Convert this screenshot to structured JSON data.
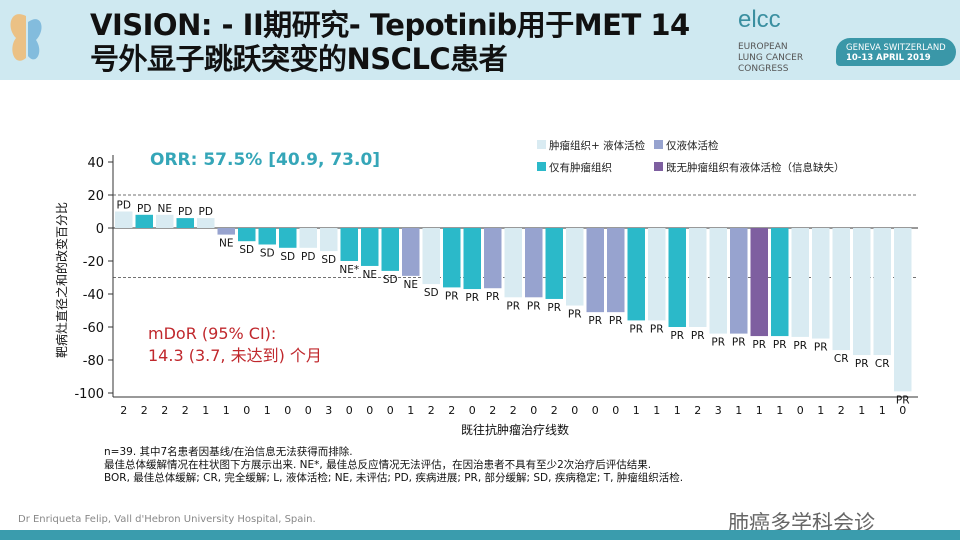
{
  "header": {
    "title_line1": "VISION: - II期研究- Tepotinib用于MET 14",
    "title_line2": "号外显子跳跃突变的NSCLC患者",
    "logo_text": "elcc",
    "logo_sub": [
      "EUROPEAN",
      "LUNG CANCER",
      "CONGRESS"
    ],
    "location": "GENEVA SWITZERLAND",
    "dates": "10-13 APRIL 2019"
  },
  "chart_data": {
    "type": "bar",
    "ylabel": "靶病灶直径之和的改变百分比",
    "xlabel": "既往抗肿瘤治疗线数",
    "ylim": [
      -100,
      40
    ],
    "yticks": [
      40,
      20,
      0,
      -20,
      -40,
      -60,
      -80,
      -100
    ],
    "reference_lines": [
      20,
      -30
    ],
    "legend_placement": "top-right",
    "legend": [
      {
        "key": "both",
        "label": "肿瘤组织+ 液体活检",
        "color": "#d9ebf2"
      },
      {
        "key": "liquid",
        "label": "仅液体活检",
        "color": "#97a3cf"
      },
      {
        "key": "tissue",
        "label": "仅有肿瘤组织",
        "color": "#2bb9c9"
      },
      {
        "key": "none",
        "label": "既无肿瘤组织有液体活检（信息缺失）",
        "color": "#7e5fa0"
      }
    ],
    "values": [
      10,
      8,
      8,
      6,
      6,
      -4,
      -8,
      -10,
      -12,
      -12,
      -14,
      -20,
      -23,
      -26,
      -29,
      -34,
      -36,
      -37,
      -36.5,
      -42,
      -42,
      -43,
      -47,
      -51,
      -51,
      -56,
      -56,
      -60,
      -60,
      -64,
      -64,
      -65.5,
      -65.5,
      -66,
      -67,
      -74,
      -77,
      -77,
      -99
    ],
    "groups": [
      "both",
      "tissue",
      "both",
      "tissue",
      "both",
      "liquid",
      "tissue",
      "tissue",
      "tissue",
      "both",
      "both",
      "tissue",
      "tissue",
      "tissue",
      "liquid",
      "both",
      "tissue",
      "tissue",
      "liquid",
      "both",
      "liquid",
      "tissue",
      "both",
      "liquid",
      "liquid",
      "tissue",
      "both",
      "tissue",
      "both",
      "both",
      "liquid",
      "none",
      "tissue",
      "both",
      "both",
      "both",
      "both",
      "both",
      "both"
    ],
    "responses": [
      "PD",
      "PD",
      "NE",
      "PD",
      "PD",
      "NE",
      "SD",
      "SD",
      "SD",
      "PD",
      "SD",
      "NE*",
      "NE",
      "SD",
      "NE",
      "SD",
      "PR",
      "PR",
      "PR",
      "PR",
      "PR",
      "PR",
      "PR",
      "PR",
      "PR",
      "PR",
      "PR",
      "PR",
      "PR",
      "PR",
      "PR",
      "PR",
      "PR",
      "PR",
      "PR",
      "CR",
      "PR",
      "CR",
      "PR"
    ],
    "prior_lines": [
      "2",
      "2",
      "2",
      "2",
      "1",
      "1",
      "0",
      "1",
      "0",
      "0",
      "3",
      "0",
      "0",
      "0",
      "1",
      "2",
      "2",
      "0",
      "2",
      "2",
      "0",
      "2",
      "0",
      "0",
      "0",
      "1",
      "1",
      "1",
      "2",
      "3",
      "1",
      "1",
      "1",
      "0",
      "1",
      "2",
      "1",
      "1",
      "0"
    ],
    "annotations": {
      "orr": "ORR: 57.5% [40.9, 73.0]",
      "mdor_line1": "mDoR (95% CI):",
      "mdor_line2": "14.3 (3.7, 未达到) 个月"
    }
  },
  "notes": [
    "n=39. 其中7名患者因基线/在治信息无法获得而排除.",
    "最佳总体缓解情况在柱状图下方展示出来. NE*, 最佳总反应情况无法评估，在因治患者不具有至少2次治疗后评估结果.",
    " BOR, 最佳总体缓解; CR, 完全缓解; L, 液体活检; NE, 未评估; PD, 疾病进展; PR, 部分缓解;  SD, 疾病稳定; T, 肿瘤组织活检."
  ],
  "credit": "Dr Enriqueta Felip, Vall d'Hebron University Hospital, Spain.",
  "watermark": "肺癌多学科会诊"
}
